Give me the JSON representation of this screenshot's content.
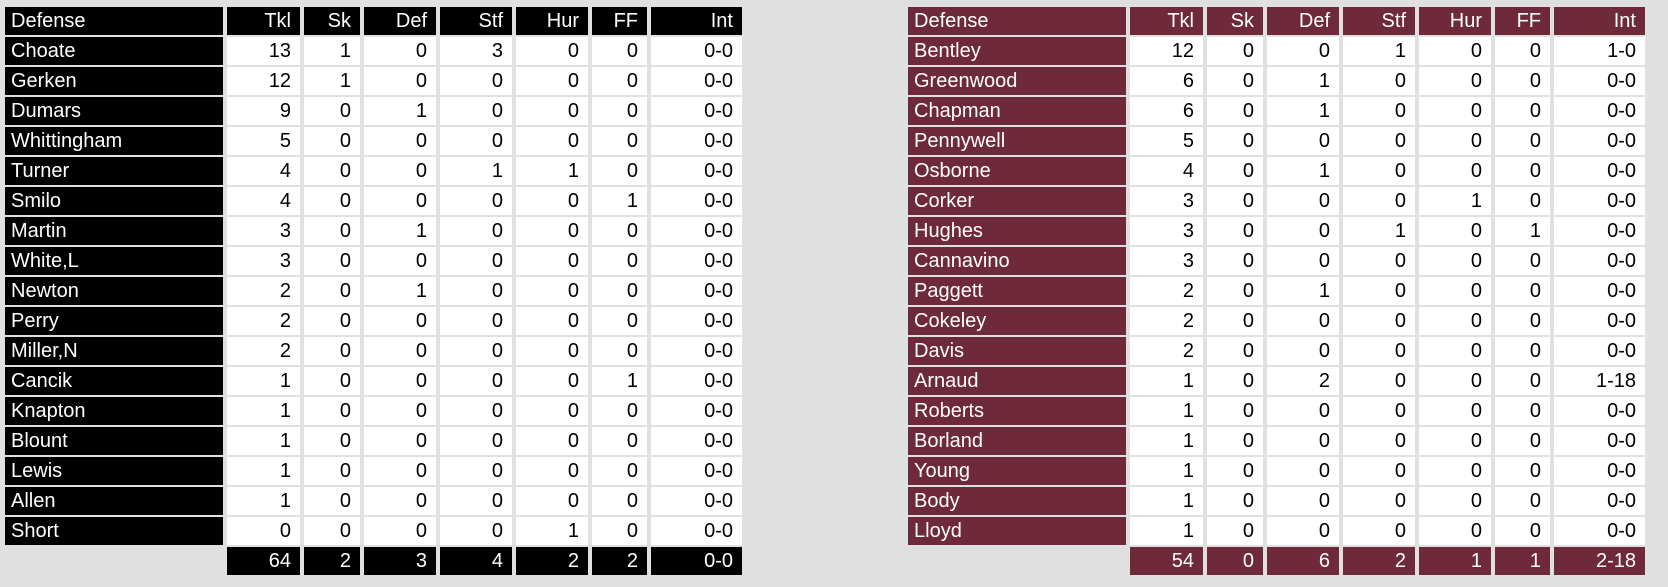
{
  "colors": {
    "left_team": "#000000",
    "right_team": "#6e2a3b",
    "background": "#e0e0e0"
  },
  "columns": [
    "Defense",
    "Tkl",
    "Sk",
    "Def",
    "Stf",
    "Hur",
    "FF",
    "Int"
  ],
  "left": {
    "rows": [
      [
        "Choate",
        "13",
        "1",
        "0",
        "3",
        "0",
        "0",
        "0-0"
      ],
      [
        "Gerken",
        "12",
        "1",
        "0",
        "0",
        "0",
        "0",
        "0-0"
      ],
      [
        "Dumars",
        "9",
        "0",
        "1",
        "0",
        "0",
        "0",
        "0-0"
      ],
      [
        "Whittingham",
        "5",
        "0",
        "0",
        "0",
        "0",
        "0",
        "0-0"
      ],
      [
        "Turner",
        "4",
        "0",
        "0",
        "1",
        "1",
        "0",
        "0-0"
      ],
      [
        "Smilo",
        "4",
        "0",
        "0",
        "0",
        "0",
        "1",
        "0-0"
      ],
      [
        "Martin",
        "3",
        "0",
        "1",
        "0",
        "0",
        "0",
        "0-0"
      ],
      [
        "White,L",
        "3",
        "0",
        "0",
        "0",
        "0",
        "0",
        "0-0"
      ],
      [
        "Newton",
        "2",
        "0",
        "1",
        "0",
        "0",
        "0",
        "0-0"
      ],
      [
        "Perry",
        "2",
        "0",
        "0",
        "0",
        "0",
        "0",
        "0-0"
      ],
      [
        "Miller,N",
        "2",
        "0",
        "0",
        "0",
        "0",
        "0",
        "0-0"
      ],
      [
        "Cancik",
        "1",
        "0",
        "0",
        "0",
        "0",
        "1",
        "0-0"
      ],
      [
        "Knapton",
        "1",
        "0",
        "0",
        "0",
        "0",
        "0",
        "0-0"
      ],
      [
        "Blount",
        "1",
        "0",
        "0",
        "0",
        "0",
        "0",
        "0-0"
      ],
      [
        "Lewis",
        "1",
        "0",
        "0",
        "0",
        "0",
        "0",
        "0-0"
      ],
      [
        "Allen",
        "1",
        "0",
        "0",
        "0",
        "0",
        "0",
        "0-0"
      ],
      [
        "Short",
        "0",
        "0",
        "0",
        "0",
        "1",
        "0",
        "0-0"
      ]
    ],
    "totals": [
      "64",
      "2",
      "3",
      "4",
      "2",
      "2",
      "0-0"
    ]
  },
  "right": {
    "rows": [
      [
        "Bentley",
        "12",
        "0",
        "0",
        "1",
        "0",
        "0",
        "1-0"
      ],
      [
        "Greenwood",
        "6",
        "0",
        "1",
        "0",
        "0",
        "0",
        "0-0"
      ],
      [
        "Chapman",
        "6",
        "0",
        "1",
        "0",
        "0",
        "0",
        "0-0"
      ],
      [
        "Pennywell",
        "5",
        "0",
        "0",
        "0",
        "0",
        "0",
        "0-0"
      ],
      [
        "Osborne",
        "4",
        "0",
        "1",
        "0",
        "0",
        "0",
        "0-0"
      ],
      [
        "Corker",
        "3",
        "0",
        "0",
        "0",
        "1",
        "0",
        "0-0"
      ],
      [
        "Hughes",
        "3",
        "0",
        "0",
        "1",
        "0",
        "1",
        "0-0"
      ],
      [
        "Cannavino",
        "3",
        "0",
        "0",
        "0",
        "0",
        "0",
        "0-0"
      ],
      [
        "Paggett",
        "2",
        "0",
        "1",
        "0",
        "0",
        "0",
        "0-0"
      ],
      [
        "Cokeley",
        "2",
        "0",
        "0",
        "0",
        "0",
        "0",
        "0-0"
      ],
      [
        "Davis",
        "2",
        "0",
        "0",
        "0",
        "0",
        "0",
        "0-0"
      ],
      [
        "Arnaud",
        "1",
        "0",
        "2",
        "0",
        "0",
        "0",
        "1-18"
      ],
      [
        "Roberts",
        "1",
        "0",
        "0",
        "0",
        "0",
        "0",
        "0-0"
      ],
      [
        "Borland",
        "1",
        "0",
        "0",
        "0",
        "0",
        "0",
        "0-0"
      ],
      [
        "Young",
        "1",
        "0",
        "0",
        "0",
        "0",
        "0",
        "0-0"
      ],
      [
        "Body",
        "1",
        "0",
        "0",
        "0",
        "0",
        "0",
        "0-0"
      ],
      [
        "Lloyd",
        "1",
        "0",
        "0",
        "0",
        "0",
        "0",
        "0-0"
      ]
    ],
    "totals": [
      "54",
      "0",
      "6",
      "2",
      "1",
      "1",
      "2-18"
    ]
  }
}
